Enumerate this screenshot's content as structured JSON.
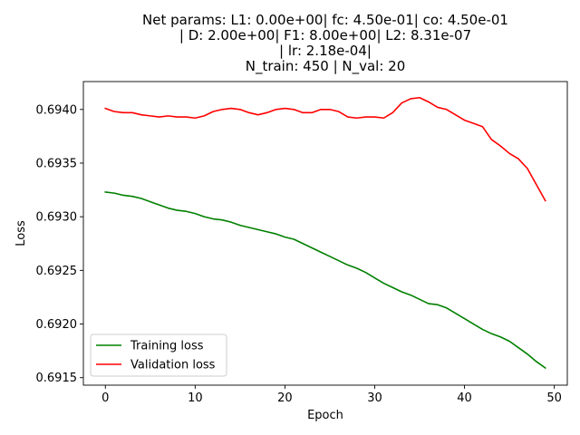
{
  "chart_data": {
    "type": "line",
    "title_lines": [
      "Net params: L1: 0.00e+00| fc: 4.50e-01| co: 4.50e-01",
      "| D: 2.00e+00| F1: 8.00e+00| L2: 8.31e-07",
      "| lr: 2.18e-04|",
      "N_train: 450 | N_val: 20"
    ],
    "xlabel": "Epoch",
    "ylabel": "Loss",
    "xlim": [
      -2.45,
      51.45
    ],
    "ylim": [
      0.69143,
      0.69426
    ],
    "xticks": [
      0,
      10,
      20,
      30,
      40,
      50
    ],
    "xtick_labels": [
      "0",
      "10",
      "20",
      "30",
      "40",
      "50"
    ],
    "yticks": [
      0.6915,
      0.692,
      0.6925,
      0.693,
      0.6935,
      0.694
    ],
    "ytick_labels": [
      "0.6915",
      "0.6920",
      "0.6925",
      "0.6930",
      "0.6935",
      "0.6940"
    ],
    "grid": false,
    "legend_position": "lower-left",
    "x": [
      0,
      1,
      2,
      3,
      4,
      5,
      6,
      7,
      8,
      9,
      10,
      11,
      12,
      13,
      14,
      15,
      16,
      17,
      18,
      19,
      20,
      21,
      22,
      23,
      24,
      25,
      26,
      27,
      28,
      29,
      30,
      31,
      32,
      33,
      34,
      35,
      36,
      37,
      38,
      39,
      40,
      41,
      42,
      43,
      44,
      45,
      46,
      47,
      48,
      49
    ],
    "series": [
      {
        "name": "Training loss",
        "color": "#008000",
        "values": [
          0.69323,
          0.69322,
          0.6932,
          0.69319,
          0.69317,
          0.69314,
          0.69311,
          0.69308,
          0.69306,
          0.69305,
          0.69303,
          0.693,
          0.69298,
          0.69297,
          0.69295,
          0.69292,
          0.6929,
          0.69288,
          0.69286,
          0.69284,
          0.69281,
          0.69279,
          0.69275,
          0.69271,
          0.69267,
          0.69263,
          0.69259,
          0.69255,
          0.69252,
          0.69248,
          0.69243,
          0.69238,
          0.69234,
          0.6923,
          0.69227,
          0.69223,
          0.69219,
          0.69218,
          0.69215,
          0.6921,
          0.69205,
          0.692,
          0.69195,
          0.69191,
          0.69188,
          0.69184,
          0.69178,
          0.69172,
          0.69165,
          0.69159
        ]
      },
      {
        "name": "Validation loss",
        "color": "#ff0000",
        "values": [
          0.69401,
          0.69398,
          0.69397,
          0.69397,
          0.69395,
          0.69394,
          0.69393,
          0.69394,
          0.69393,
          0.69393,
          0.69392,
          0.69394,
          0.69398,
          0.694,
          0.69401,
          0.694,
          0.69397,
          0.69395,
          0.69397,
          0.694,
          0.69401,
          0.694,
          0.69397,
          0.69397,
          0.694,
          0.694,
          0.69398,
          0.69393,
          0.69392,
          0.69393,
          0.69393,
          0.69392,
          0.69397,
          0.69406,
          0.6941,
          0.69411,
          0.69407,
          0.69402,
          0.694,
          0.69395,
          0.6939,
          0.69387,
          0.69384,
          0.69372,
          0.69366,
          0.69359,
          0.69354,
          0.69345,
          0.6933,
          0.69315
        ]
      }
    ]
  }
}
